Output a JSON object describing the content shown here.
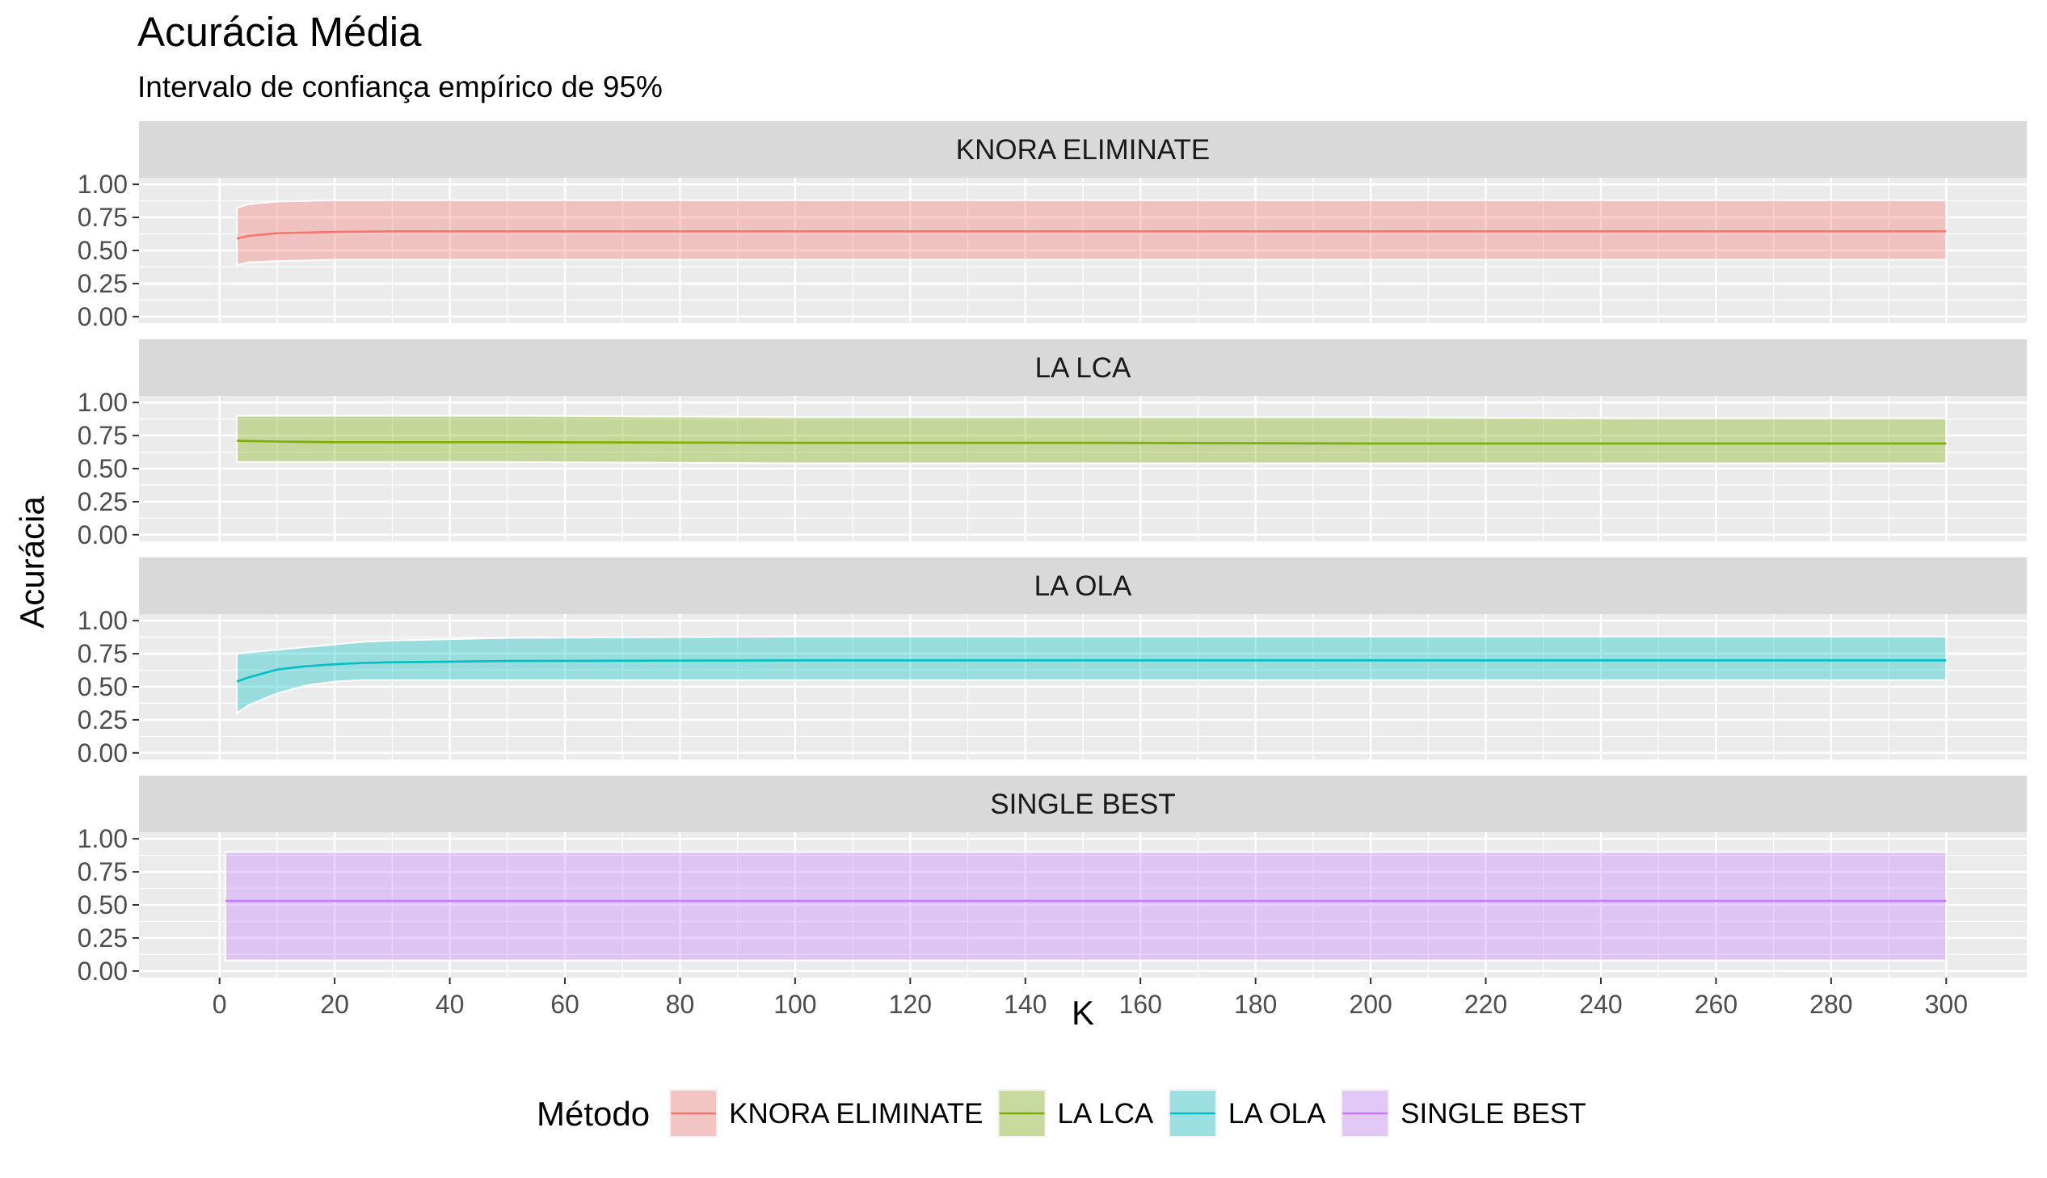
{
  "chart_data": {
    "type": "area",
    "title": "Acurácia Média",
    "subtitle": "Intervalo de confiança empírico de 95%",
    "xlabel": "K",
    "ylabel": "Acurácia",
    "xlim": [
      -14,
      314
    ],
    "ylim": [
      -0.05,
      1.05
    ],
    "x_ticks": [
      0,
      20,
      40,
      60,
      80,
      100,
      120,
      140,
      160,
      180,
      200,
      220,
      240,
      260,
      280,
      300
    ],
    "y_ticks": [
      0.0,
      0.25,
      0.5,
      0.75,
      1.0
    ],
    "y_tick_labels": [
      "0.00",
      "0.25",
      "0.50",
      "0.75",
      "1.00"
    ],
    "grid": true,
    "legend": {
      "title": "Método",
      "position": "bottom"
    },
    "series": [
      {
        "name": "KNORA ELIMINATE",
        "color": "#F8766D",
        "x": [
          3,
          5,
          10,
          20,
          30,
          50,
          100,
          150,
          200,
          250,
          300
        ],
        "mean": [
          0.59,
          0.61,
          0.63,
          0.64,
          0.645,
          0.645,
          0.645,
          0.645,
          0.645,
          0.645,
          0.645
        ],
        "lower": [
          0.39,
          0.41,
          0.42,
          0.43,
          0.43,
          0.43,
          0.43,
          0.43,
          0.43,
          0.43,
          0.43
        ],
        "upper": [
          0.82,
          0.85,
          0.87,
          0.88,
          0.88,
          0.88,
          0.88,
          0.88,
          0.88,
          0.88,
          0.88
        ]
      },
      {
        "name": "LA LCA",
        "color": "#7CAE00",
        "x": [
          3,
          10,
          20,
          50,
          100,
          150,
          200,
          250,
          300
        ],
        "mean": [
          0.71,
          0.705,
          0.7,
          0.7,
          0.695,
          0.695,
          0.69,
          0.69,
          0.69
        ],
        "lower": [
          0.55,
          0.55,
          0.55,
          0.55,
          0.54,
          0.54,
          0.54,
          0.54,
          0.54
        ],
        "upper": [
          0.9,
          0.9,
          0.9,
          0.9,
          0.89,
          0.89,
          0.89,
          0.88,
          0.88
        ]
      },
      {
        "name": "LA OLA",
        "color": "#00BFC4",
        "x": [
          3,
          5,
          10,
          15,
          20,
          25,
          30,
          40,
          50,
          100,
          150,
          200,
          250,
          300
        ],
        "mean": [
          0.54,
          0.57,
          0.63,
          0.655,
          0.67,
          0.68,
          0.685,
          0.69,
          0.695,
          0.7,
          0.7,
          0.7,
          0.7,
          0.7
        ],
        "lower": [
          0.3,
          0.36,
          0.45,
          0.51,
          0.54,
          0.55,
          0.55,
          0.55,
          0.55,
          0.55,
          0.55,
          0.55,
          0.55,
          0.55
        ],
        "upper": [
          0.75,
          0.76,
          0.78,
          0.8,
          0.82,
          0.84,
          0.85,
          0.86,
          0.87,
          0.88,
          0.88,
          0.88,
          0.88,
          0.88
        ]
      },
      {
        "name": "SINGLE BEST",
        "color": "#C77CFF",
        "x": [
          1,
          300
        ],
        "mean": [
          0.53,
          0.53
        ],
        "lower": [
          0.08,
          0.08
        ],
        "upper": [
          0.9,
          0.9
        ]
      }
    ]
  }
}
